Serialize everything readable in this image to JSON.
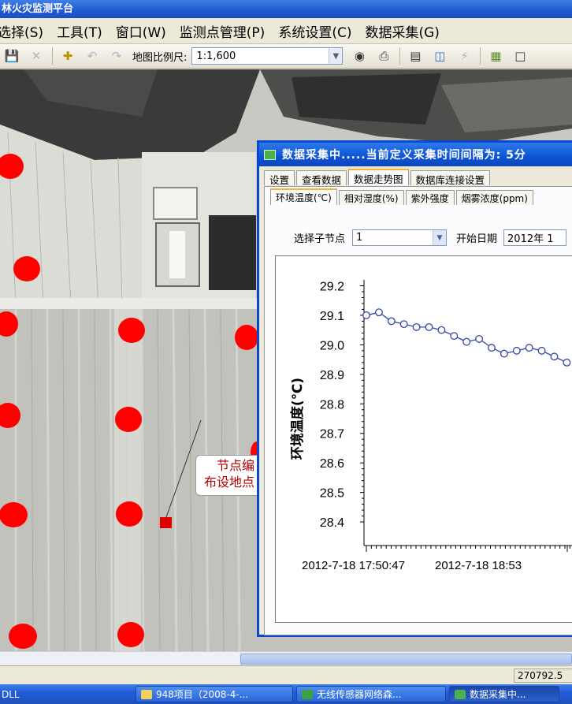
{
  "app": {
    "title": "森林火灾监测平台",
    "title_visible": "林火灾监测平台"
  },
  "menu": {
    "items": [
      "选择(S)",
      "工具(T)",
      "窗口(W)",
      "监测点管理(P)",
      "系统设置(C)",
      "数据采集(G)"
    ]
  },
  "toolbar": {
    "scale_label": "地图比例尺:",
    "scale_value": "1:1,600",
    "icons": [
      "save-icon",
      "delete-icon",
      "add-point-icon",
      "undo-icon",
      "redo-icon",
      "binoculars-icon",
      "print-icon",
      "measure-icon",
      "layer-icon",
      "flash-icon",
      "export-icon",
      "page-icon"
    ]
  },
  "map": {
    "callout_line1": "节点编",
    "callout_line2": "布设地点",
    "node_color": "#ff0000"
  },
  "status": {
    "coordinate": "270792.5"
  },
  "taskbar": {
    "start_text": "DLL",
    "items": [
      {
        "label": "948项目（2008-4-..."
      },
      {
        "label": "无线传感器网络森..."
      },
      {
        "label": "数据采集中..."
      }
    ]
  },
  "data_window": {
    "title": "数据采集中.....当前定义采集时间间隔为: 5分",
    "tabs": [
      "设置",
      "查看数据",
      "数据走势图",
      "数据库连接设置"
    ],
    "active_tab": "数据走势图",
    "subtabs": [
      "环境温度(℃)",
      "相对湿度(%)",
      "紫外强度",
      "烟雾浓度(ppm)"
    ],
    "active_subtab": "环境温度(℃)",
    "node_label": "选择子节点",
    "node_value": "1",
    "date_label": "开始日期",
    "date_value": "2012年 1"
  },
  "chart_data": {
    "type": "line",
    "title": "",
    "xlabel": "",
    "ylabel": "环境温度(℃)",
    "ylim": [
      28.32,
      29.22
    ],
    "y_ticks": [
      29.2,
      29.1,
      29.0,
      28.9,
      28.8,
      28.7,
      28.6,
      28.5,
      28.4
    ],
    "y_tick_labels": [
      "29.2",
      "29.1",
      "29.0",
      "28.9",
      "28.8",
      "28.7",
      "28.6",
      "28.5",
      "28.4"
    ],
    "x_tick_labels": [
      "2012-7-18 17:50:47",
      "2012-7-18 18:53"
    ],
    "series": [
      {
        "name": "环境温度",
        "color": "#3347a8",
        "values": [
          29.1,
          29.11,
          29.08,
          29.07,
          29.06,
          29.06,
          29.05,
          29.03,
          29.01,
          29.02,
          28.99,
          28.97,
          28.98,
          28.99,
          28.98,
          28.96,
          28.94
        ]
      }
    ]
  }
}
